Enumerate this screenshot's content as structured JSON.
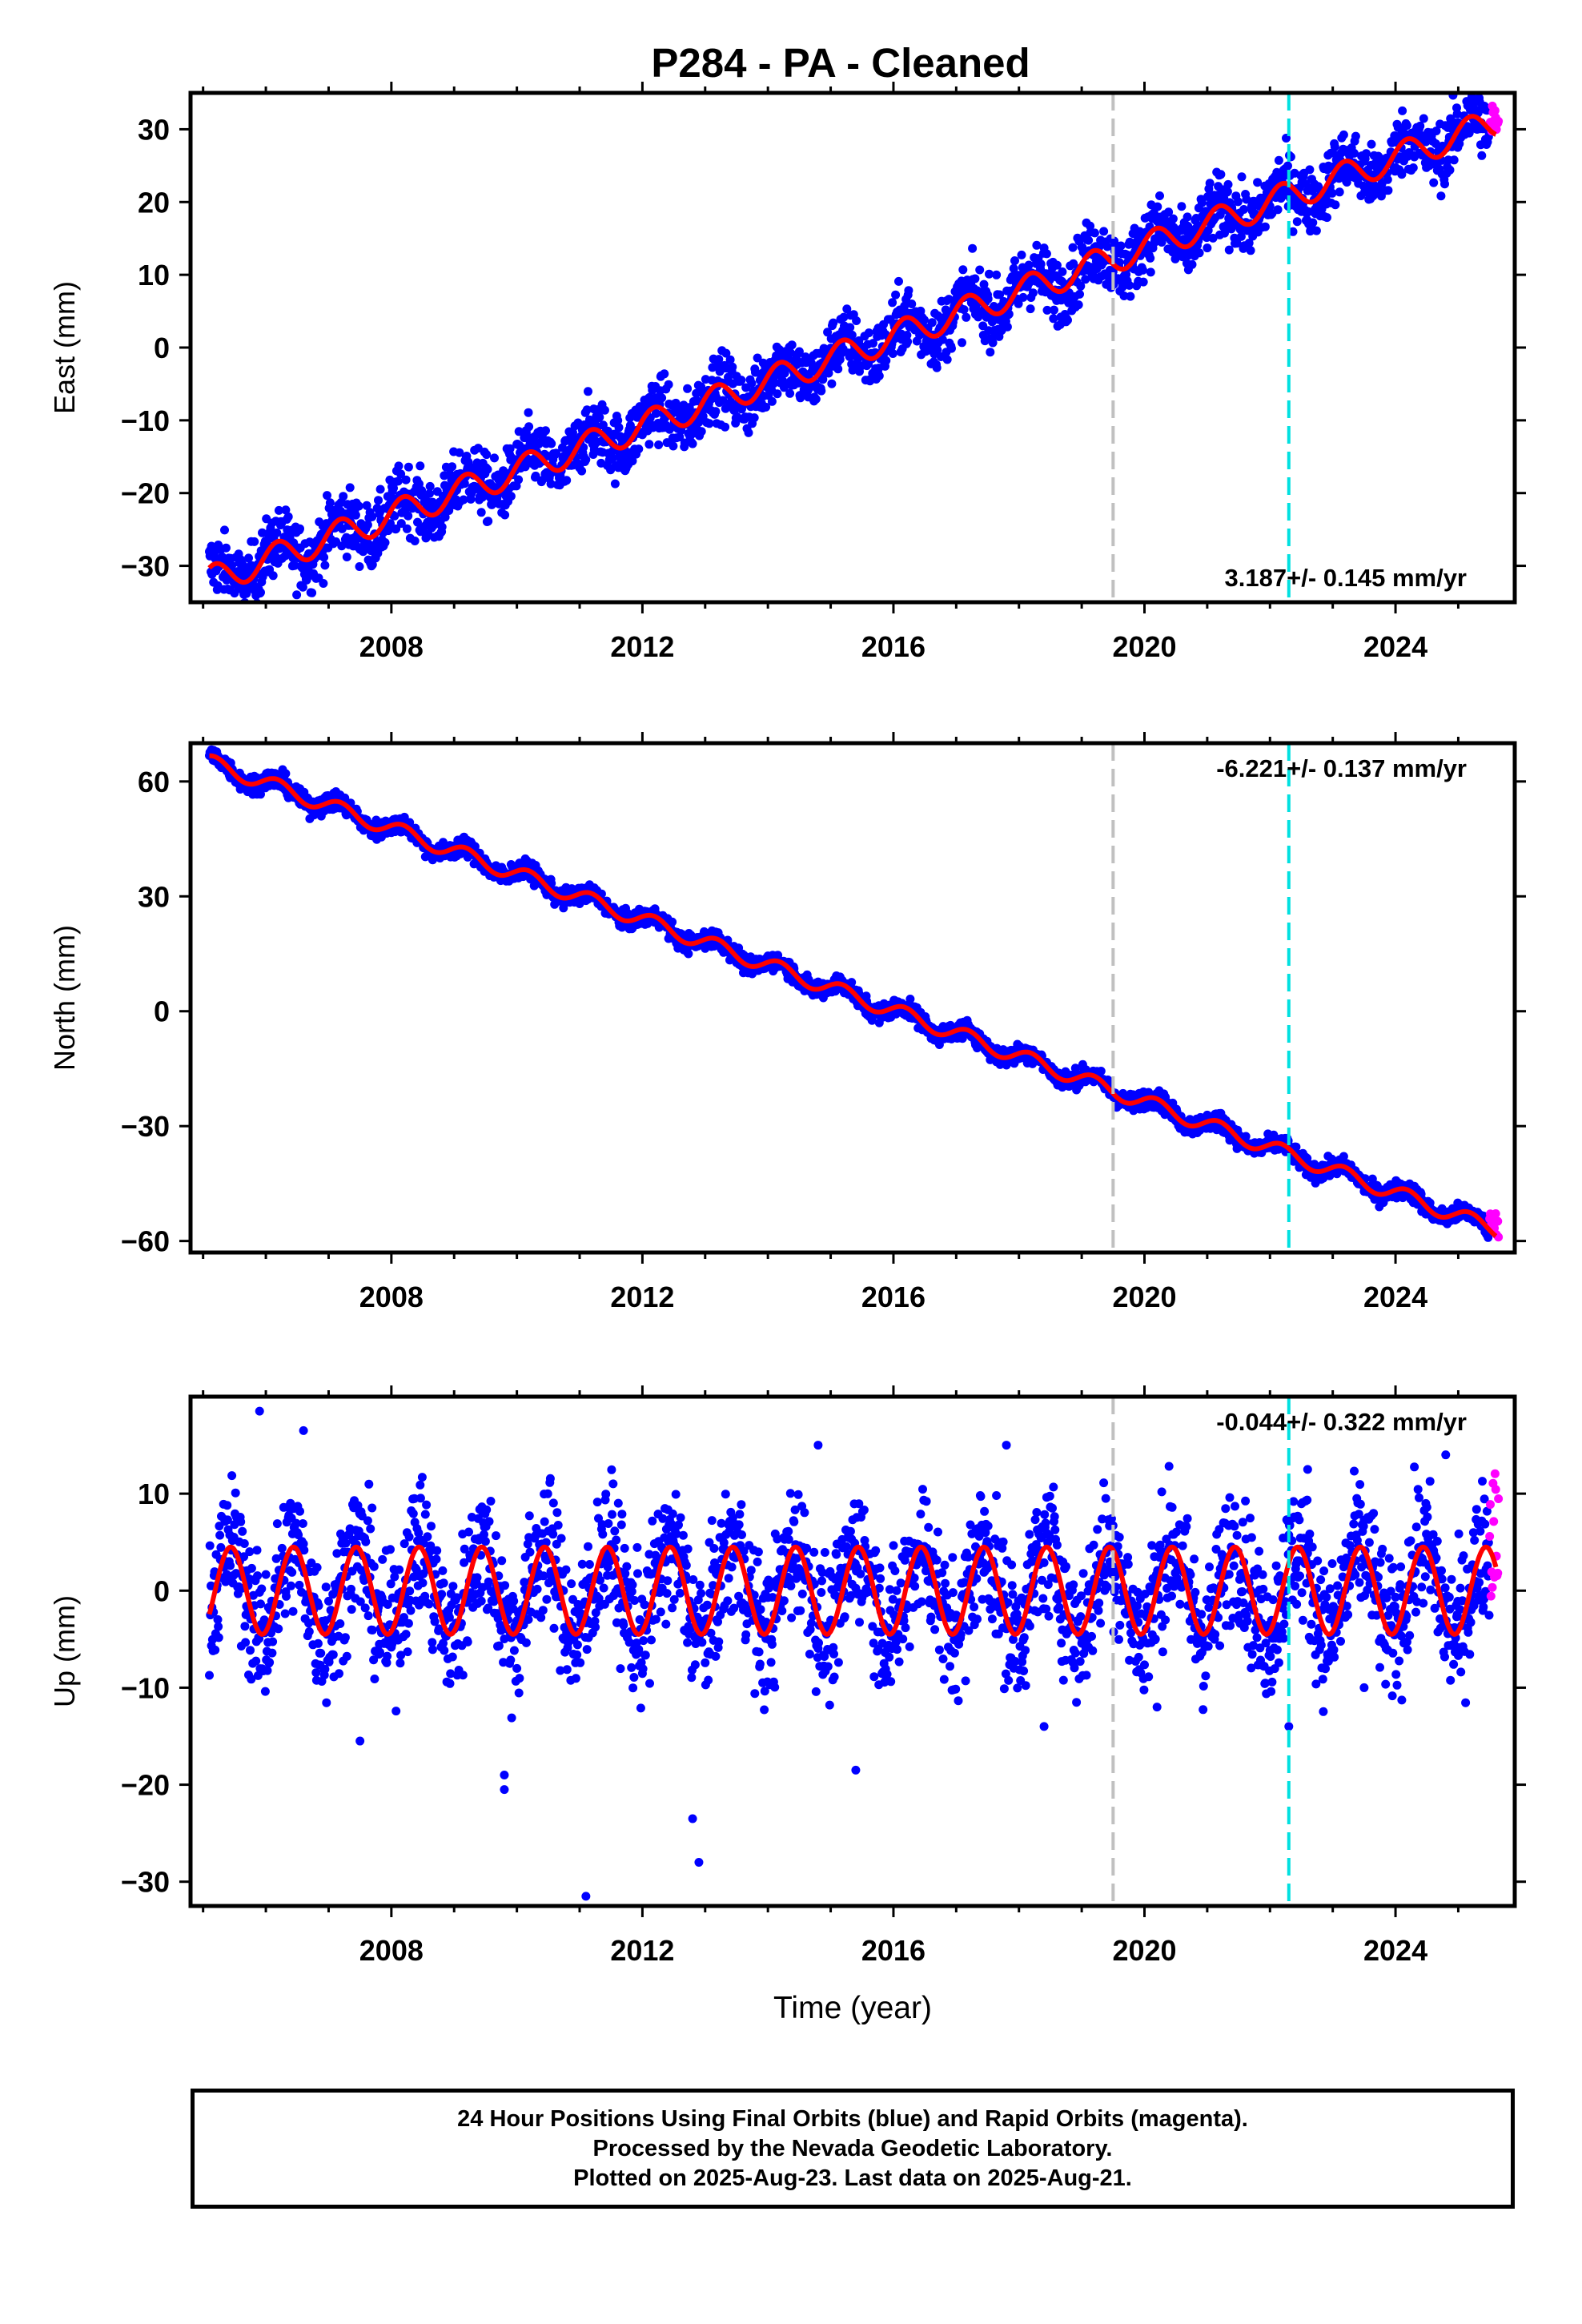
{
  "title": "P284  - PA - Cleaned",
  "footer": {
    "line1": "24 Hour Positions Using Final Orbits (blue) and Rapid Orbits (magenta).",
    "line2": "Processed by the Nevada Geodetic Laboratory.",
    "line3": "Plotted on 2025-Aug-23. Last data on 2025-Aug-21."
  },
  "colors": {
    "final_orbits": "#0000ff",
    "rapid_orbits": "#ff00ff",
    "model": "#ff0000",
    "vline_gray": "#c0c0c0",
    "vline_cyan": "#00e0e0"
  },
  "chart_data": [
    {
      "type": "scatter",
      "ylabel": "East (mm)",
      "xlabel": "",
      "xlim": [
        2004.8,
        2025.9
      ],
      "ylim": [
        -35,
        35
      ],
      "xticks": [
        2008,
        2012,
        2016,
        2020,
        2024
      ],
      "yticks": [
        -30,
        -20,
        -10,
        0,
        10,
        20,
        30
      ],
      "rate_text": "3.187+/- 0.145 mm/yr",
      "rate_position": "bottom-right",
      "trend": {
        "start_year": 2005.1,
        "start_value": -32.0,
        "end_year": 2025.6,
        "end_value": 31.0
      },
      "seasonal_amplitude": 2.0,
      "scatter_spread": 2.2,
      "vlines": [
        {
          "x": 2019.5,
          "color": "gray"
        },
        {
          "x": 2022.3,
          "color": "cyan"
        }
      ],
      "rapid_segment": {
        "x": [
          2025.5,
          2025.64
        ],
        "y_range": [
          28,
          34
        ]
      },
      "grid": false
    },
    {
      "type": "scatter",
      "ylabel": "North (mm)",
      "xlabel": "",
      "xlim": [
        2004.8,
        2025.9
      ],
      "ylim": [
        -63,
        70
      ],
      "xticks": [
        2008,
        2012,
        2016,
        2020,
        2024
      ],
      "yticks": [
        -60,
        -30,
        0,
        30,
        60
      ],
      "rate_text": "-6.221+/- 0.137 mm/yr",
      "rate_position": "top-right",
      "trend": {
        "start_year": 2005.1,
        "start_value": 65.0,
        "end_year": 2025.6,
        "end_value": -57.0
      },
      "seasonal_amplitude": 2.0,
      "scatter_spread": 1.2,
      "vlines": [
        {
          "x": 2019.5,
          "color": "gray"
        },
        {
          "x": 2022.3,
          "color": "cyan"
        }
      ],
      "rapid_segment": {
        "x": [
          2025.5,
          2025.64
        ],
        "y_range": [
          -59,
          -52
        ]
      },
      "grid": false
    },
    {
      "type": "scatter",
      "ylabel": "Up (mm)",
      "xlabel": "Time (year)",
      "xlim": [
        2004.8,
        2025.9
      ],
      "ylim": [
        -32.5,
        20
      ],
      "xticks": [
        2008,
        2012,
        2016,
        2020,
        2024
      ],
      "yticks": [
        -30,
        -20,
        -10,
        0,
        10
      ],
      "rate_text": "-0.044+/- 0.322 mm/yr",
      "rate_position": "top-right",
      "trend": {
        "start_year": 2005.1,
        "start_value": 0.0,
        "end_year": 2025.6,
        "end_value": 0.0
      },
      "seasonal_amplitude": 4.5,
      "scatter_spread": 3.5,
      "outliers": [
        {
          "x": 2005.9,
          "y": 18.5
        },
        {
          "x": 2006.6,
          "y": 16.5
        },
        {
          "x": 2007.5,
          "y": -15.5
        },
        {
          "x": 2009.8,
          "y": -19.0
        },
        {
          "x": 2009.8,
          "y": -20.5
        },
        {
          "x": 2011.1,
          "y": -31.5
        },
        {
          "x": 2012.8,
          "y": -23.5
        },
        {
          "x": 2012.9,
          "y": -28.0
        },
        {
          "x": 2014.8,
          "y": 15.0
        },
        {
          "x": 2015.4,
          "y": -18.5
        },
        {
          "x": 2017.8,
          "y": 15.0
        },
        {
          "x": 2018.4,
          "y": -14.0
        },
        {
          "x": 2020.2,
          "y": -12.0
        },
        {
          "x": 2022.3,
          "y": -14.0
        },
        {
          "x": 2022.6,
          "y": 12.5
        },
        {
          "x": 2023.5,
          "y": -10.0
        },
        {
          "x": 2024.8,
          "y": 14.0
        }
      ],
      "vlines": [
        {
          "x": 2019.5,
          "color": "gray"
        },
        {
          "x": 2022.3,
          "color": "cyan"
        }
      ],
      "rapid_segment": {
        "x": [
          2025.5,
          2025.64
        ],
        "y_range": [
          -4,
          14
        ]
      },
      "grid": false
    }
  ]
}
